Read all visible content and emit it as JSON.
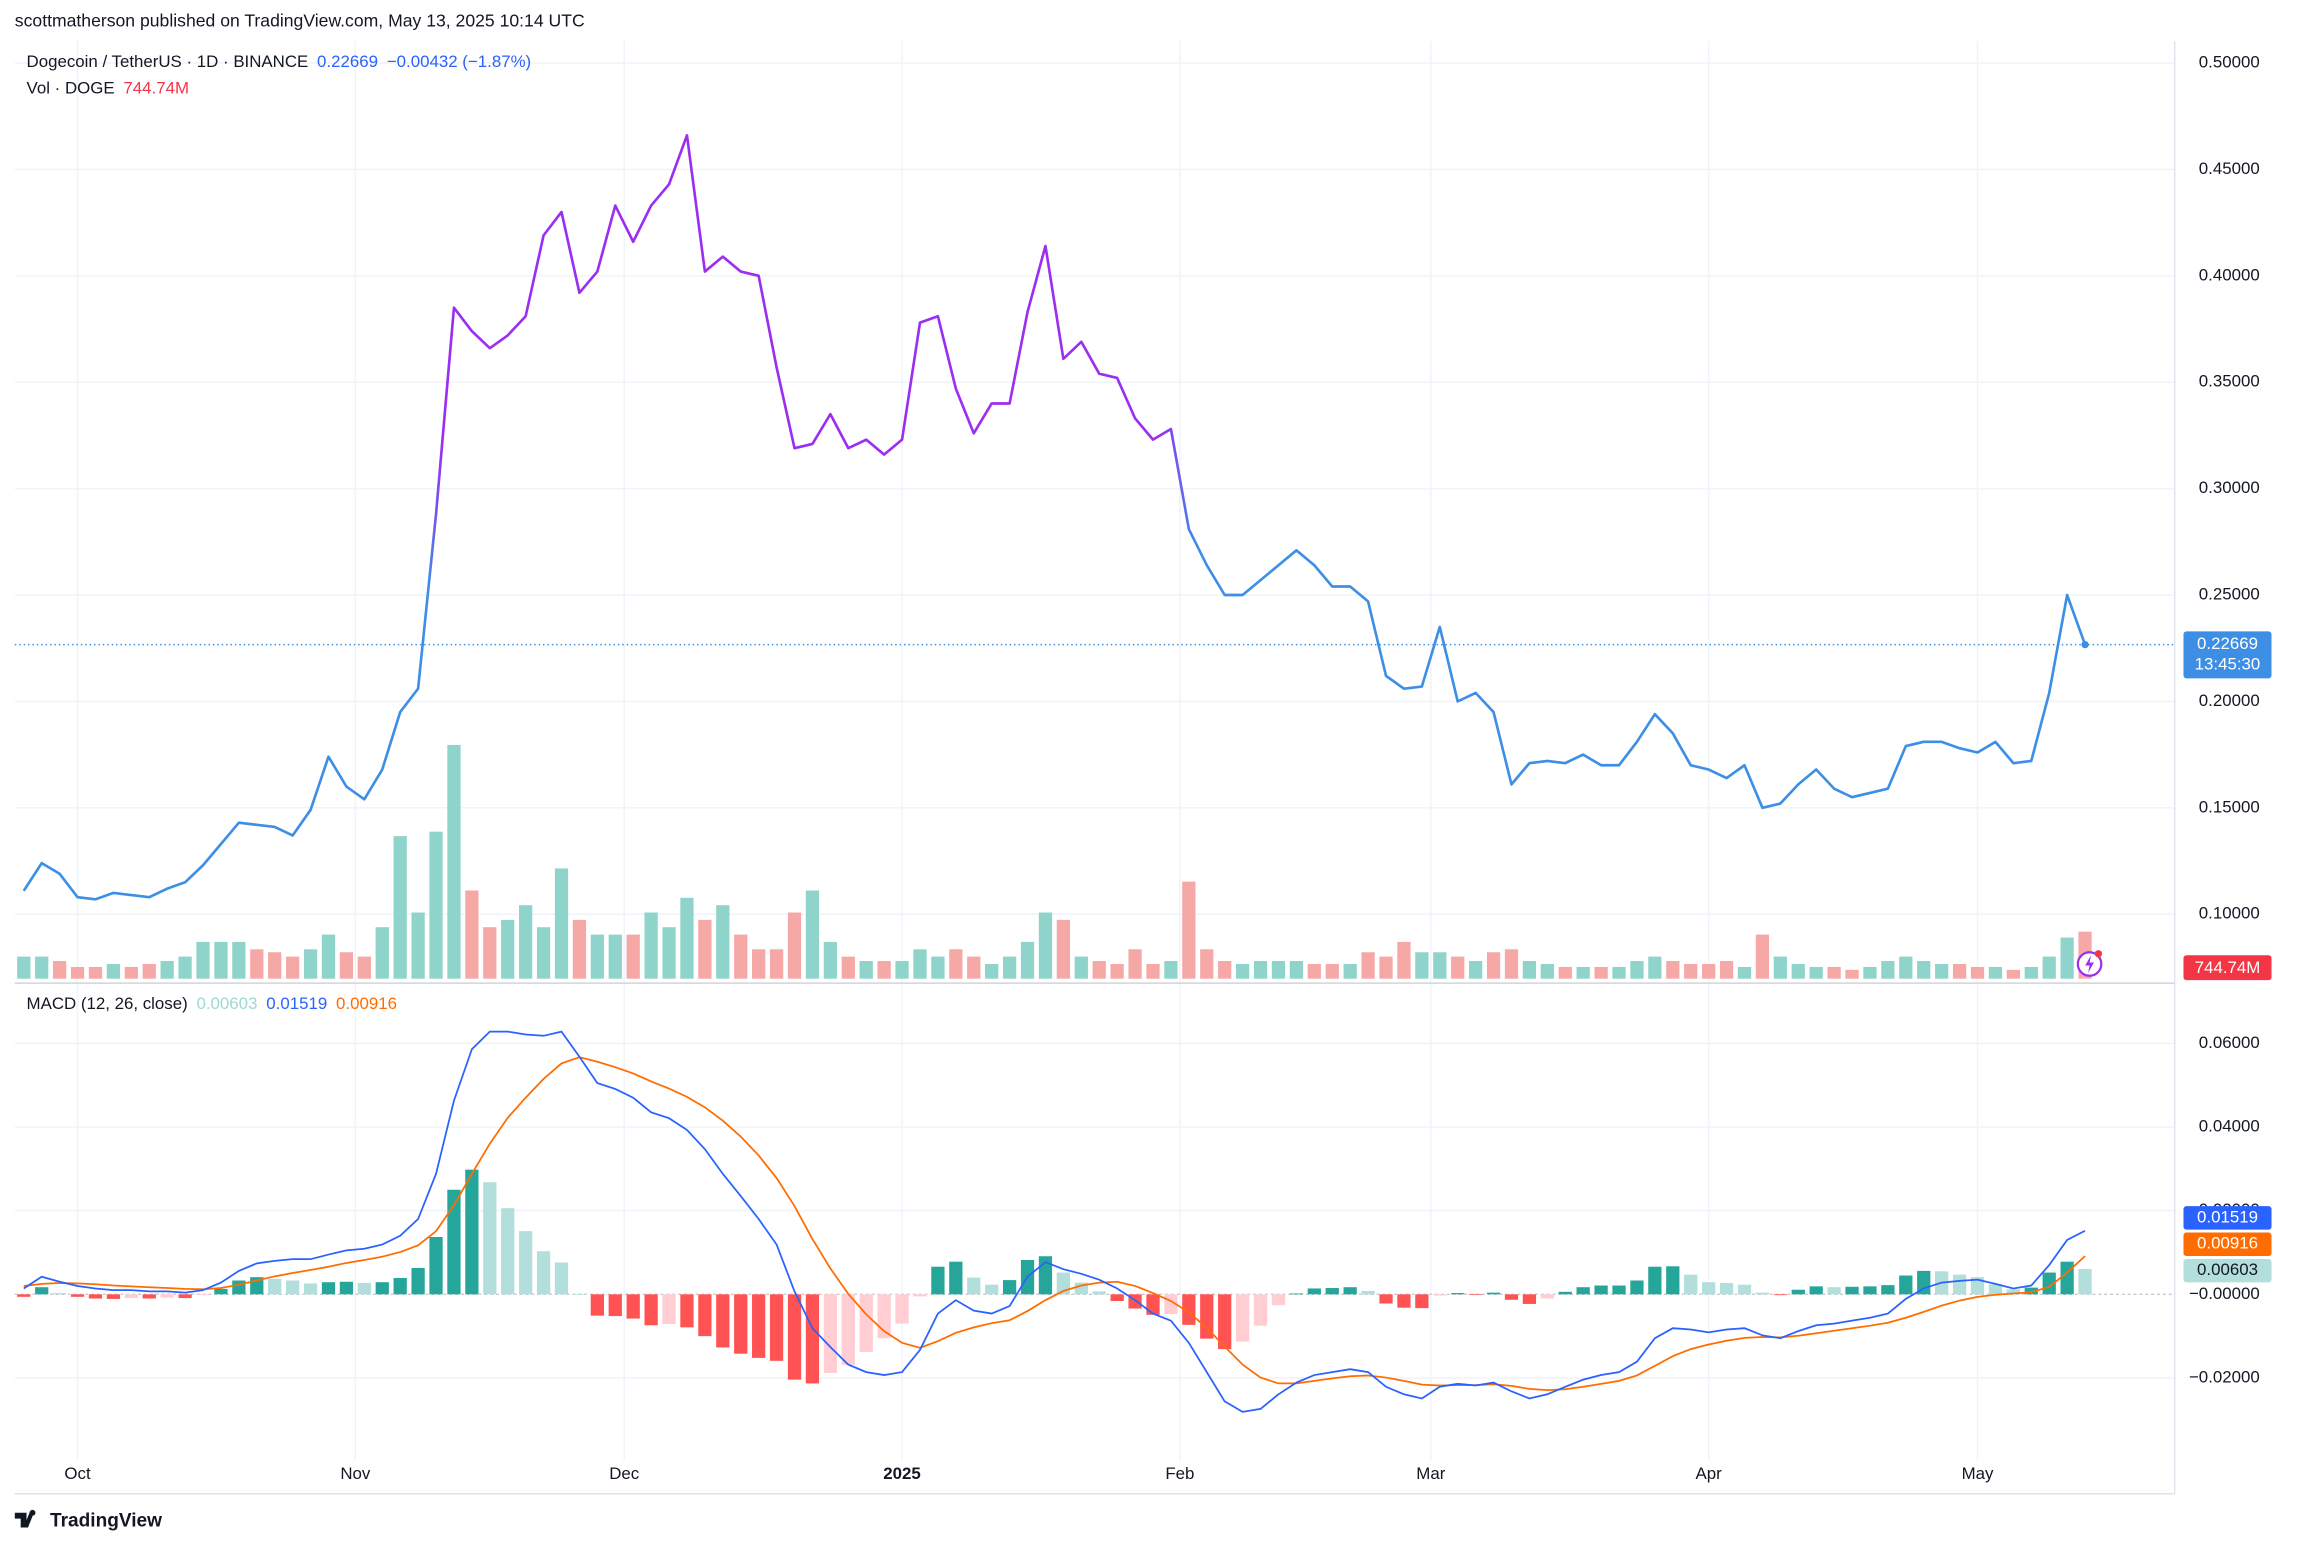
{
  "header": {
    "published": "scottmatherson published on TradingView.com, May 13, 2025 10:14 UTC",
    "brand": "TradingView"
  },
  "chart_data": [
    {
      "type": "line",
      "title": "Dogecoin / TetherUS · 1D · BINANCE",
      "change_label": "−0.00432 (−1.87%)",
      "countdown_label": "13:45:30",
      "ylim": [
        0.0697,
        0.5103
      ],
      "yticks": [
        {
          "value": 0.1,
          "label": "0.10000"
        },
        {
          "value": 0.15,
          "label": "0.15000"
        },
        {
          "value": 0.2,
          "label": "0.20000"
        },
        {
          "value": 0.25,
          "label": "0.25000"
        },
        {
          "value": 0.3,
          "label": "0.30000"
        },
        {
          "value": 0.35,
          "label": "0.35000"
        },
        {
          "value": 0.4,
          "label": "0.40000"
        },
        {
          "value": 0.45,
          "label": "0.45000"
        },
        {
          "value": 0.5,
          "label": "0.50000"
        }
      ],
      "grid": true,
      "series": [
        {
          "colors": [
            "#3d8fe6",
            "#9b2ef0"
          ],
          "values": [
            0.111,
            0.124,
            0.119,
            0.108,
            0.107,
            0.11,
            0.109,
            0.108,
            0.112,
            0.115,
            0.123,
            0.133,
            0.143,
            0.142,
            0.141,
            0.137,
            0.149,
            0.174,
            0.16,
            0.154,
            0.168,
            0.195,
            0.206,
            0.288,
            0.385,
            0.374,
            0.366,
            0.372,
            0.381,
            0.419,
            0.43,
            0.392,
            0.402,
            0.433,
            0.416,
            0.433,
            0.443,
            0.466,
            0.402,
            0.409,
            0.402,
            0.4,
            0.357,
            0.319,
            0.321,
            0.335,
            0.319,
            0.323,
            0.316,
            0.323,
            0.378,
            0.381,
            0.347,
            0.326,
            0.34,
            0.34,
            0.383,
            0.414,
            0.361,
            0.369,
            0.354,
            0.352,
            0.333,
            0.323,
            0.328,
            0.281,
            0.264,
            0.25,
            0.25,
            0.257,
            0.264,
            0.271,
            0.264,
            0.254,
            0.254,
            0.247,
            0.212,
            0.206,
            0.207,
            0.235,
            0.2,
            0.204,
            0.195,
            0.161,
            0.171,
            0.172,
            0.171,
            0.175,
            0.17,
            0.17,
            0.181,
            0.194,
            0.185,
            0.17,
            0.168,
            0.164,
            0.17,
            0.15,
            0.152,
            0.161,
            0.168,
            0.159,
            0.155,
            0.157,
            0.159,
            0.179,
            0.181,
            0.181,
            0.178,
            0.176,
            0.181,
            0.171,
            0.172,
            0.204,
            0.25,
            0.22669
          ]
        }
      ]
    },
    {
      "type": "bar",
      "title": "Vol · DOGE",
      "value_label": "744.74M",
      "up_color": "#8fd4cb",
      "down_color": "#f6a8a6",
      "ylim": [
        0,
        5000
      ],
      "values": [
        350,
        350,
        280,
        186,
        186,
        233,
        186,
        233,
        280,
        350,
        583,
        583,
        583,
        466,
        419,
        350,
        466,
        699,
        419,
        350,
        816,
        2260,
        1049,
        2330,
        3705,
        1398,
        816,
        932,
        1165,
        816,
        1748,
        932,
        699,
        699,
        699,
        1049,
        816,
        1282,
        932,
        1165,
        699,
        466,
        466,
        1049,
        1398,
        583,
        350,
        280,
        280,
        280,
        466,
        350,
        466,
        350,
        233,
        350,
        583,
        1049,
        932,
        350,
        280,
        233,
        466,
        233,
        280,
        1538,
        466,
        280,
        233,
        280,
        280,
        280,
        233,
        233,
        233,
        419,
        350,
        583,
        419,
        419,
        350,
        280,
        419,
        466,
        280,
        233,
        186,
        186,
        186,
        186,
        280,
        350,
        280,
        233,
        233,
        280,
        186,
        699,
        350,
        233,
        186,
        186,
        140,
        186,
        280,
        350,
        280,
        233,
        233,
        186,
        186,
        140,
        186,
        350,
        652,
        744.74
      ]
    },
    {
      "type": "macd",
      "title": "MACD (12, 26, close)",
      "ylim": [
        -0.0396,
        0.0737
      ],
      "yticks": [
        {
          "value": -0.02,
          "label": "−0.02000"
        },
        {
          "value": 0,
          "label": "−0.00000"
        },
        {
          "value": 0.02,
          "label": "0.02000"
        },
        {
          "value": 0.04,
          "label": "0.04000"
        },
        {
          "value": 0.06,
          "label": "0.06000"
        }
      ],
      "xlim": [
        -0.5,
        120
      ],
      "xticks": [
        {
          "value": 3,
          "label": "Oct"
        },
        {
          "value": 18.5,
          "label": "Nov"
        },
        {
          "value": 33.5,
          "label": "Dec"
        },
        {
          "value": 49,
          "label": "2025"
        },
        {
          "value": 64.5,
          "label": "Feb"
        },
        {
          "value": 78.5,
          "label": "Mar"
        },
        {
          "value": 94,
          "label": "Apr"
        },
        {
          "value": 109,
          "label": "May"
        }
      ],
      "histogram": {
        "colors": [
          "#26a69a",
          "#b2dfdb",
          "#ff5252",
          "#ffcdd2"
        ],
        "values": [
          -0.0006,
          0.0017,
          0.0003,
          -0.0006,
          -0.001,
          -0.0011,
          -0.0009,
          -0.001,
          -0.0008,
          -0.0009,
          -0.0002,
          0.0013,
          0.0033,
          0.0041,
          0.0037,
          0.0033,
          0.0026,
          0.0029,
          0.003,
          0.0027,
          0.0029,
          0.0039,
          0.0063,
          0.0137,
          0.025,
          0.0298,
          0.0268,
          0.0206,
          0.0151,
          0.0103,
          0.0076,
          0.0001,
          -0.0051,
          -0.0052,
          -0.0058,
          -0.0074,
          -0.0071,
          -0.0079,
          -0.01,
          -0.0127,
          -0.0142,
          -0.0152,
          -0.0159,
          -0.0204,
          -0.0213,
          -0.0188,
          -0.0169,
          -0.0138,
          -0.0105,
          -0.007,
          -0.0005,
          0.0066,
          0.0078,
          0.004,
          0.0023,
          0.0034,
          0.0082,
          0.0091,
          0.0052,
          0.0028,
          0.0007,
          -0.0016,
          -0.0034,
          -0.0049,
          -0.0047,
          -0.0073,
          -0.0106,
          -0.0131,
          -0.0113,
          -0.0075,
          -0.0026,
          0.0002,
          0.0014,
          0.0015,
          0.0017,
          0.0008,
          -0.0022,
          -0.0032,
          -0.0033,
          -0.0003,
          0.0003,
          -0.0001,
          0.0004,
          -0.0013,
          -0.0023,
          -0.001,
          0.0006,
          0.0017,
          0.0021,
          0.0021,
          0.0033,
          0.0066,
          0.0067,
          0.0047,
          0.0029,
          0.0027,
          0.0023,
          0.0004,
          -0.0002,
          0.0011,
          0.0019,
          0.0017,
          0.0018,
          0.0019,
          0.0022,
          0.0045,
          0.0056,
          0.0055,
          0.0047,
          0.0041,
          0.0024,
          0.0012,
          0.0016,
          0.0052,
          0.0078,
          0.00603
        ]
      },
      "macd": {
        "color": "#2962ff",
        "values": [
          0.0014,
          0.0042,
          0.003,
          0.002,
          0.0014,
          0.001,
          0.001,
          0.0007,
          0.0007,
          0.0004,
          0.001,
          0.0028,
          0.0056,
          0.0074,
          0.008,
          0.0084,
          0.0084,
          0.0095,
          0.0105,
          0.0109,
          0.0119,
          0.014,
          0.018,
          0.0288,
          0.0463,
          0.0586,
          0.0628,
          0.0628,
          0.0621,
          0.0618,
          0.0628,
          0.0568,
          0.0505,
          0.0491,
          0.047,
          0.0435,
          0.0421,
          0.0393,
          0.0347,
          0.0288,
          0.0235,
          0.018,
          0.0119,
          0.0007,
          -0.0081,
          -0.0126,
          -0.0168,
          -0.0186,
          -0.0193,
          -0.0186,
          -0.0133,
          -0.0046,
          -0.0014,
          -0.0039,
          -0.0046,
          -0.0028,
          0.0042,
          0.0077,
          0.006,
          0.0049,
          0.0035,
          0.0014,
          -0.0014,
          -0.0046,
          -0.0063,
          -0.0116,
          -0.0186,
          -0.0256,
          -0.0281,
          -0.0274,
          -0.0239,
          -0.0211,
          -0.0193,
          -0.0186,
          -0.0179,
          -0.0186,
          -0.0221,
          -0.0239,
          -0.0249,
          -0.0221,
          -0.0214,
          -0.0218,
          -0.0211,
          -0.0232,
          -0.0249,
          -0.0239,
          -0.0221,
          -0.0204,
          -0.0193,
          -0.0186,
          -0.0161,
          -0.0105,
          -0.0081,
          -0.0084,
          -0.0091,
          -0.0084,
          -0.0081,
          -0.0098,
          -0.0105,
          -0.0088,
          -0.0074,
          -0.007,
          -0.0063,
          -0.0056,
          -0.0046,
          -0.0011,
          0.0014,
          0.0028,
          0.0032,
          0.0035,
          0.0025,
          0.0014,
          0.0021,
          0.007,
          0.013,
          0.01519
        ]
      },
      "signal": {
        "color": "#ff6d00",
        "values": [
          0.002,
          0.0025,
          0.0027,
          0.0026,
          0.0024,
          0.0021,
          0.0019,
          0.0017,
          0.0015,
          0.0013,
          0.0012,
          0.0015,
          0.0023,
          0.0033,
          0.0043,
          0.0051,
          0.0058,
          0.0066,
          0.0075,
          0.0082,
          0.009,
          0.0101,
          0.0117,
          0.0151,
          0.0213,
          0.0288,
          0.036,
          0.0422,
          0.047,
          0.0515,
          0.0552,
          0.0567,
          0.0556,
          0.0543,
          0.0528,
          0.0509,
          0.0492,
          0.0472,
          0.0447,
          0.0415,
          0.0377,
          0.0332,
          0.0278,
          0.0211,
          0.0132,
          0.0062,
          0.0001,
          -0.0048,
          -0.0088,
          -0.0116,
          -0.0128,
          -0.0112,
          -0.0092,
          -0.0079,
          -0.0069,
          -0.0062,
          -0.004,
          -0.0014,
          0.0008,
          0.0021,
          0.0028,
          0.003,
          0.002,
          0.0003,
          -0.0016,
          -0.0043,
          -0.008,
          -0.0125,
          -0.0168,
          -0.0199,
          -0.0213,
          -0.0213,
          -0.0207,
          -0.0201,
          -0.0196,
          -0.0194,
          -0.0199,
          -0.0207,
          -0.0216,
          -0.0218,
          -0.0217,
          -0.0217,
          -0.0215,
          -0.0219,
          -0.0226,
          -0.0229,
          -0.0227,
          -0.0221,
          -0.0214,
          -0.0207,
          -0.0194,
          -0.0171,
          -0.0148,
          -0.0131,
          -0.012,
          -0.0111,
          -0.0104,
          -0.0102,
          -0.0103,
          -0.0099,
          -0.0093,
          -0.0087,
          -0.0081,
          -0.0075,
          -0.0068,
          -0.0056,
          -0.0042,
          -0.0027,
          -0.0015,
          -0.0006,
          -0.0001,
          0.0002,
          0.0005,
          0.0018,
          0.0052,
          0.00916
        ]
      }
    }
  ]
}
